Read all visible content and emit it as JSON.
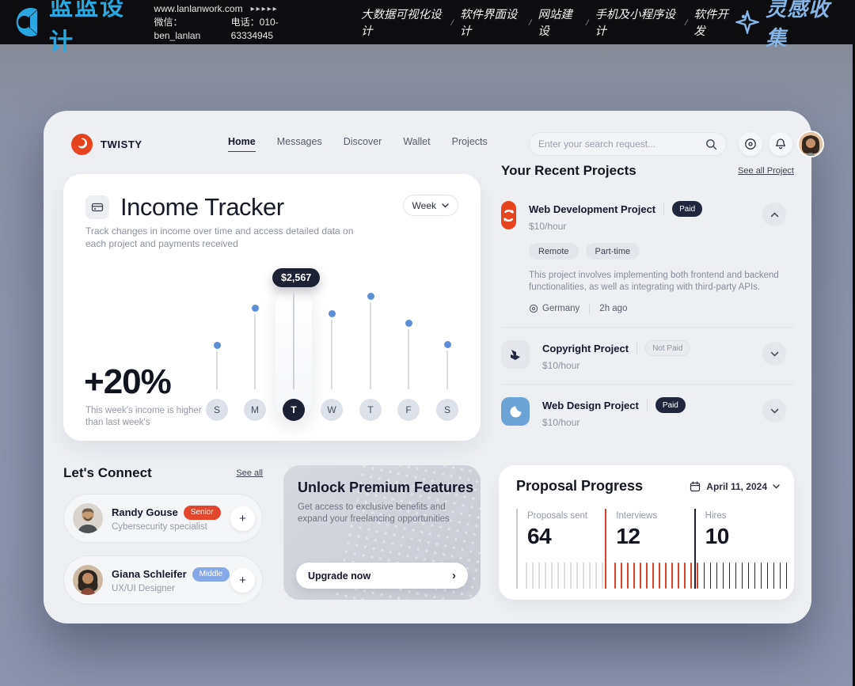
{
  "banner": {
    "logo_text": "蓝蓝设计",
    "website": "www.lanlanwork.com",
    "arrows": "▸▸▸▸▸",
    "wechat": "微信：ben_lanlan",
    "phone": "电话：010-63334945",
    "services": [
      "大数据可视化设计",
      "软件界面设计",
      "网站建设",
      "手机及小程序设计",
      "软件开发"
    ],
    "service_separator": "/",
    "collection": "灵感收集"
  },
  "header": {
    "brand": "TWISTY",
    "nav": [
      "Home",
      "Messages",
      "Discover",
      "Wallet",
      "Projects"
    ],
    "active_nav": "Home",
    "search_placeholder": "Enter your search request...",
    "icons": [
      "search-icon",
      "target-icon",
      "bell-icon",
      "avatar"
    ]
  },
  "income_tracker": {
    "title": "Income Tracker",
    "subtitle": "Track changes in income over time and access detailed data on each project and payments received",
    "period": "Week",
    "change": "+20%",
    "change_note": "This week's income is higher than last week's"
  },
  "chart_data": {
    "type": "bar",
    "subtype": "lollipop-week",
    "categories": [
      "S",
      "M",
      "T",
      "W",
      "T",
      "F",
      "S"
    ],
    "values": [
      1180,
      2170,
      2567,
      2030,
      2480,
      1760,
      1200
    ],
    "highlight_index": 2,
    "highlight_label": "$2,567",
    "ylim": [
      0,
      2567
    ],
    "dot_color": "#5c8fd6",
    "active_color": "#1c2233"
  },
  "projects": {
    "title": "Your Recent Projects",
    "see_all": "See all Project",
    "items": [
      {
        "name": "Web Development Project",
        "icon": "sync-icon",
        "icon_bg": "#e8431f",
        "status": "Paid",
        "status_style": "paid",
        "rate": "$10/hour",
        "expanded": true,
        "tags": [
          "Remote",
          "Part-time"
        ],
        "description": "This project involves implementing both frontend and backend functionalities, as well as integrating with third-party APIs.",
        "location": "Germany",
        "time_ago": "2h ago"
      },
      {
        "name": "Copyright Project",
        "icon": "copyright-icon",
        "icon_bg": "#e4e6eb",
        "status": "Not Paid",
        "status_style": "notpaid",
        "rate": "$10/hour",
        "expanded": false
      },
      {
        "name": "Web Design Project",
        "icon": "design-icon",
        "icon_bg": "#6ba3d6",
        "status": "Paid",
        "status_style": "paid",
        "rate": "$10/hour",
        "expanded": false
      }
    ]
  },
  "connect": {
    "title": "Let's Connect",
    "see_all": "See all",
    "people": [
      {
        "name": "Randy Gouse",
        "level": "Senior",
        "level_color": "#e2472e",
        "role": "Cybersecurity specialist",
        "avatar": "man-beard"
      },
      {
        "name": "Giana Schleifer",
        "level": "Middle",
        "level_color": "#84a9e6",
        "role": "UX/UI Designer",
        "avatar": "woman-curly"
      }
    ]
  },
  "premium": {
    "title": "Unlock Premium Features",
    "subtitle": "Get access to exclusive benefits and expand your freelancing opportunities",
    "button": "Upgrade now",
    "button_chevron": "›"
  },
  "proposal": {
    "title": "Proposal Progress",
    "date": "April 11, 2024",
    "stats": [
      {
        "label": "Proposals sent",
        "value": "64",
        "color": "#c9ccd3",
        "tick_color": "#d9dce1",
        "tick_count": 13
      },
      {
        "label": "Interviews",
        "value": "12",
        "color": "#d8422c",
        "tick_color": "#d8422c",
        "tick_count": 14
      },
      {
        "label": "Hires",
        "value": "10",
        "color": "#1c2030",
        "tick_color": "#23262f",
        "tick_count": 14
      }
    ]
  }
}
